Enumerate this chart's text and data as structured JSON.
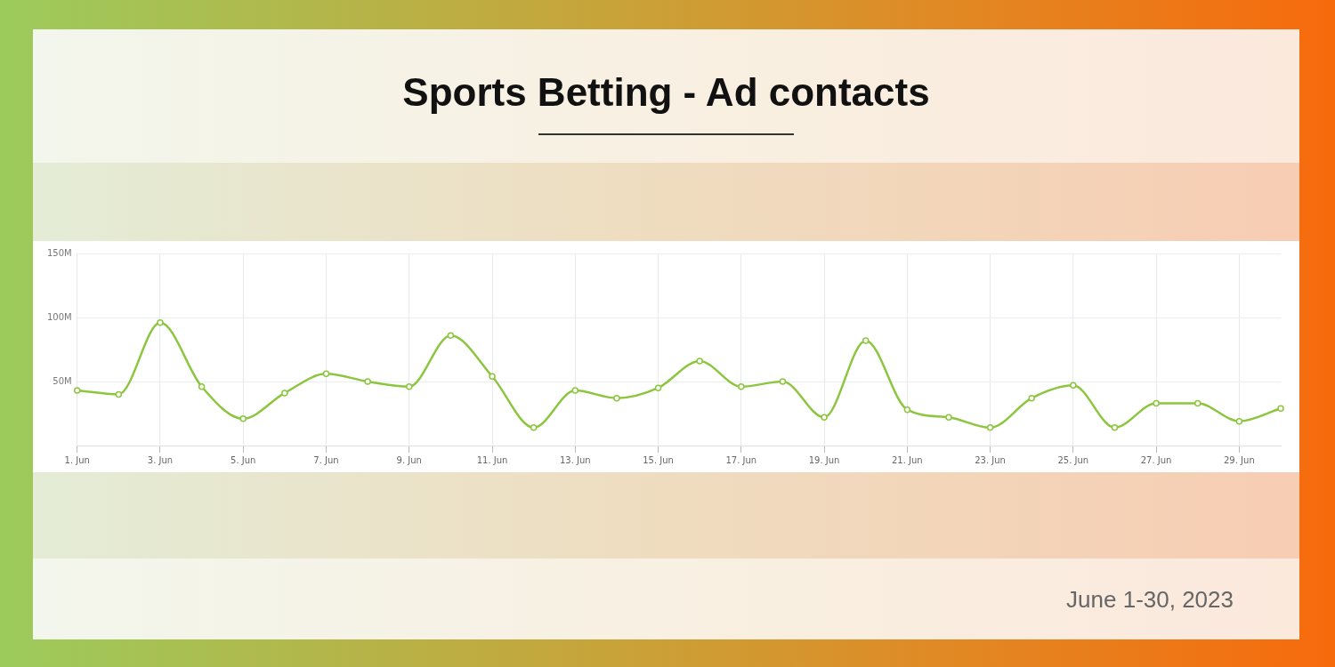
{
  "chart_data": {
    "type": "line",
    "title": "Sports Betting - Ad contacts",
    "categories": [
      "1. Jun",
      null,
      "3. Jun",
      null,
      "5. Jun",
      null,
      "7. Jun",
      null,
      "9. Jun",
      null,
      "11. Jun",
      null,
      "13. Jun",
      null,
      "15. Jun",
      null,
      "17. Jun",
      null,
      "19. Jun",
      null,
      "21. Jun",
      null,
      "23. Jun",
      null,
      "25. Jun",
      null,
      "27. Jun",
      null,
      "29. Jun",
      null
    ],
    "series": [
      {
        "color": "#8cc63f",
        "values": [
          43,
          40,
          96,
          46,
          21,
          41,
          56,
          50,
          46,
          86,
          54,
          14,
          43,
          37,
          45,
          66,
          46,
          50,
          22,
          82,
          28,
          22,
          14,
          37,
          47,
          14,
          33,
          33,
          19,
          29
        ]
      }
    ],
    "ylim": [
      0,
      150
    ],
    "yticks": [
      {
        "value": 0,
        "label": null
      },
      {
        "value": 50,
        "label": "50M"
      },
      {
        "value": 100,
        "label": "100M"
      },
      {
        "value": 150,
        "label": "150M"
      }
    ],
    "grid": true,
    "legend": false,
    "marker": "circle",
    "line_style": "solid",
    "annotations": [
      "June 1-30, 2023"
    ]
  }
}
